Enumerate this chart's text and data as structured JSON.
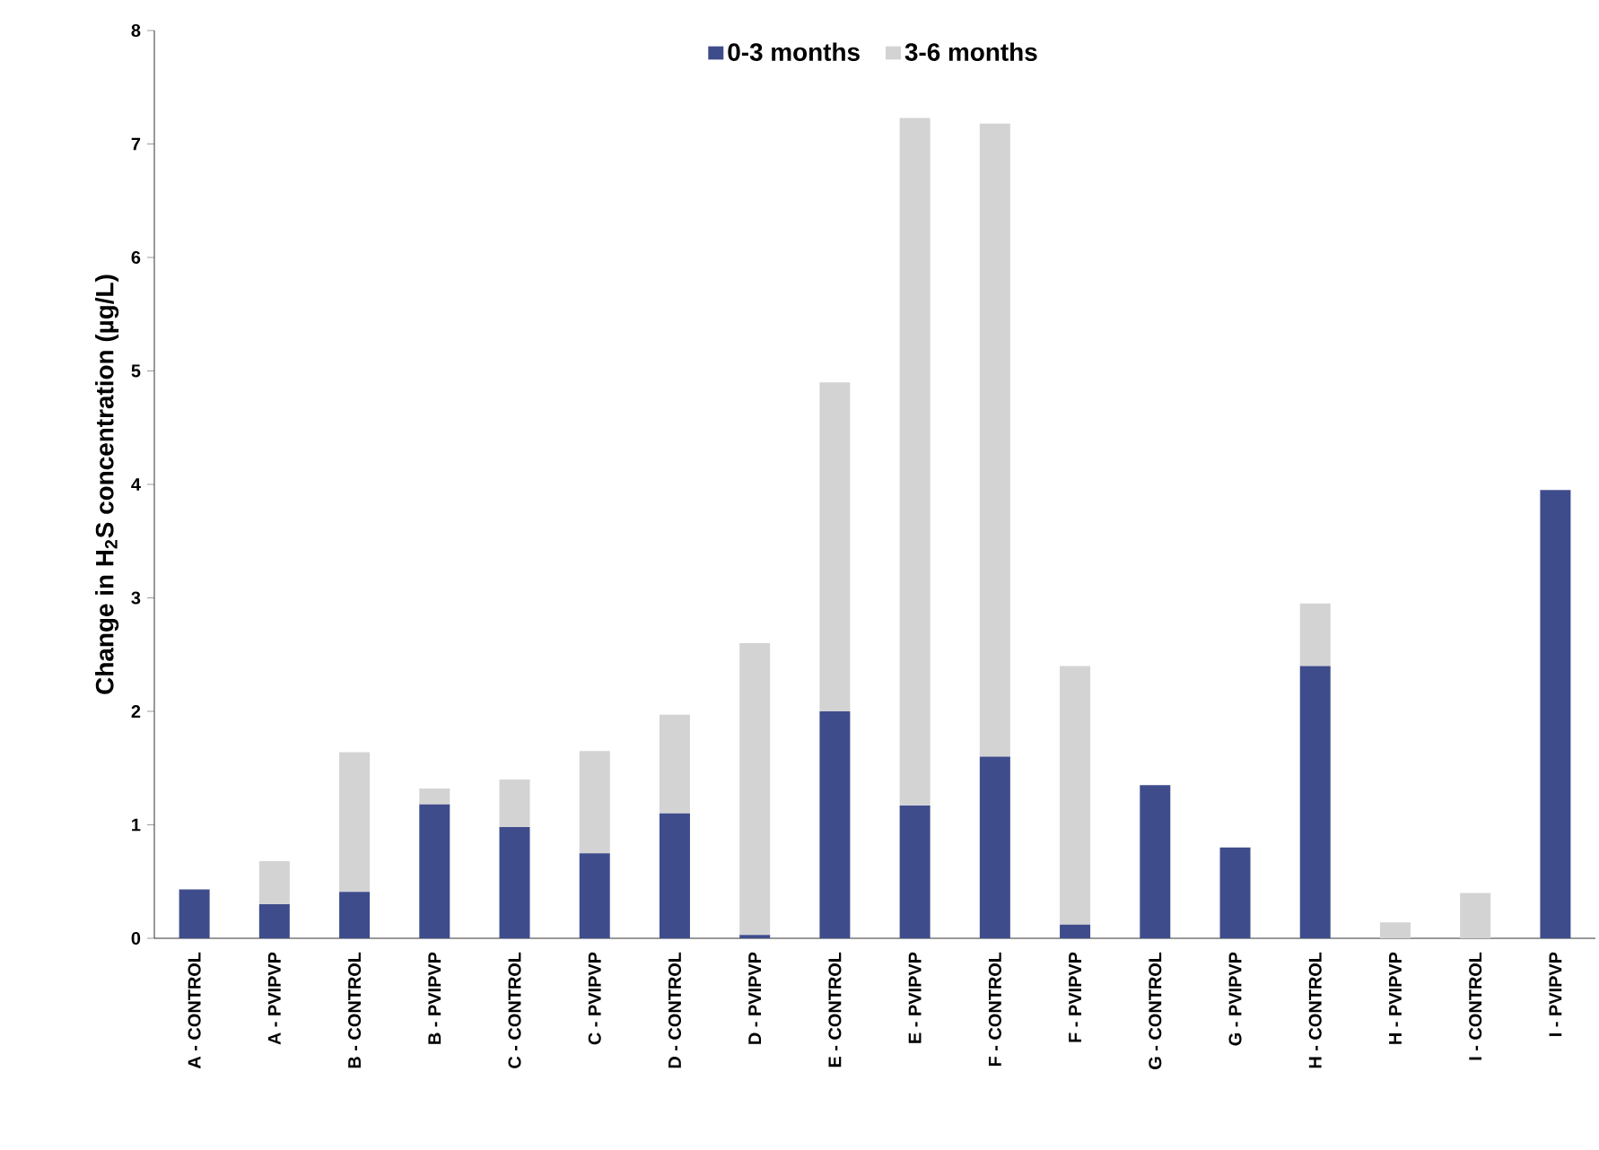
{
  "chart_data": {
    "type": "bar",
    "stacked": true,
    "ylabel": "Change in H$_{2}$S concentration (µg/L)",
    "categories": [
      "A - CONTROL",
      "A - PVIPVP",
      "B - CONTROL",
      "B - PVIPVP",
      "C - CONTROL",
      "C - PVIPVP",
      "D - CONTROL",
      "D - PVIPVP",
      "E - CONTROL",
      "E - PVIPVP",
      "F - CONTROL",
      "F - PVIPVP",
      "G - CONTROL",
      "G - PVIPVP",
      "H - CONTROL",
      "H - PVIPVP",
      "I - CONTROL",
      "I - PVIPVP"
    ],
    "series": [
      {
        "name": "0-3 months",
        "color": "#3f4c8c",
        "values": [
          0.43,
          0.3,
          0.41,
          1.18,
          0.98,
          0.75,
          1.1,
          0.03,
          2.0,
          1.17,
          1.6,
          0.12,
          1.35,
          0.8,
          2.4,
          null,
          null,
          3.95
        ]
      },
      {
        "name": "3-6 months",
        "color": "#d3d3d3",
        "values": [
          null,
          0.38,
          1.23,
          0.14,
          0.42,
          0.9,
          0.87,
          2.57,
          2.9,
          6.06,
          5.58,
          2.28,
          null,
          null,
          0.55,
          0.14,
          0.4,
          null
        ]
      }
    ],
    "ylim": [
      0,
      8
    ],
    "yticks": [
      0,
      1,
      2,
      3,
      4,
      5,
      6,
      7,
      8
    ],
    "grid": false,
    "legend": "top"
  }
}
